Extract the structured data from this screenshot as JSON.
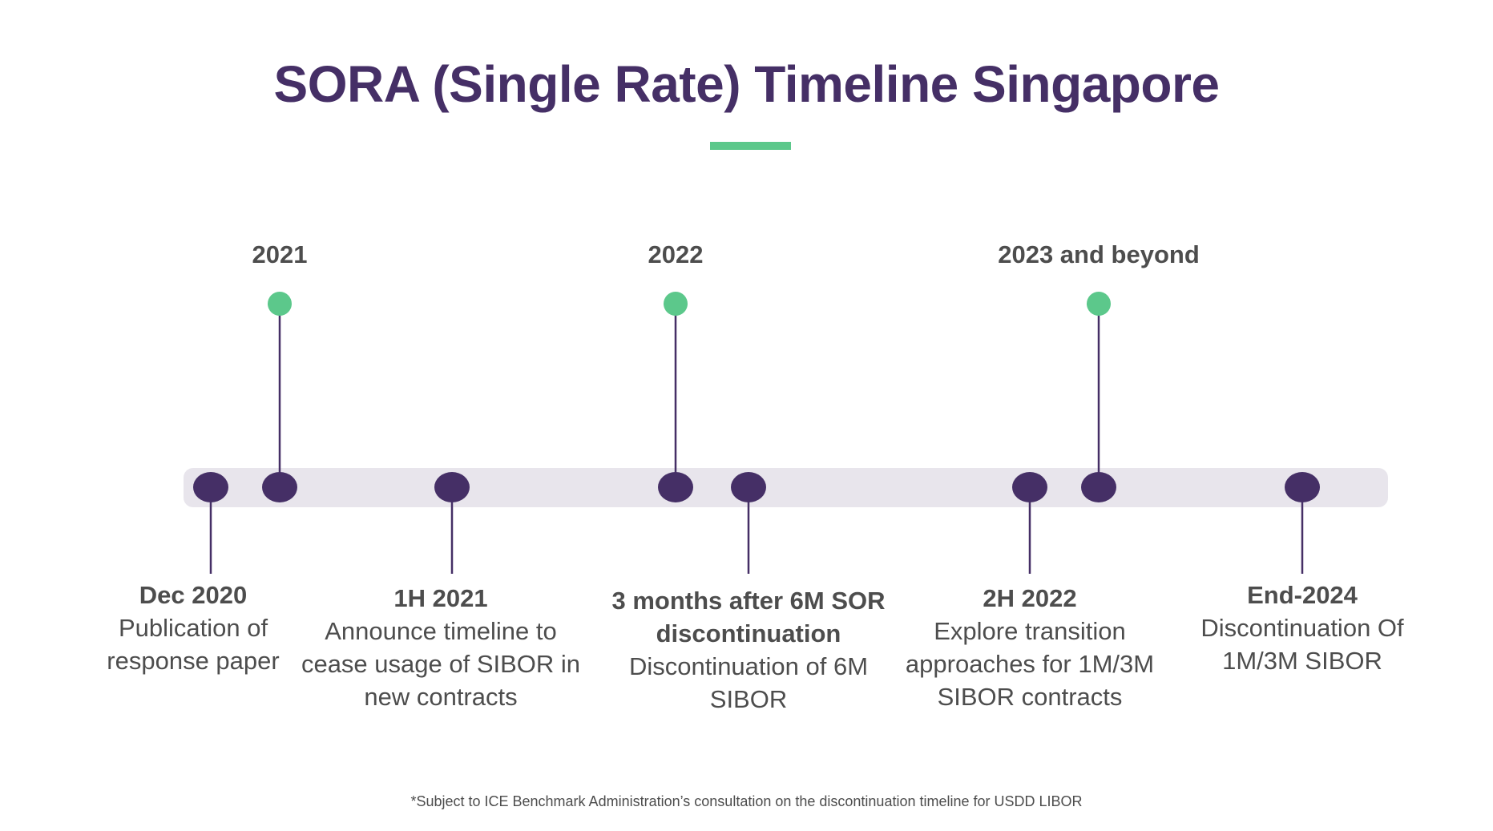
{
  "title": "SORA (Single Rate) Timeline Singapore",
  "colors": {
    "title": "#452f66",
    "accent_green": "#5cc88b",
    "node_purple": "#452f66",
    "track": "#e8e5ec",
    "text": "#4d4d4d"
  },
  "years": [
    {
      "label": "2021"
    },
    {
      "label": "2022"
    },
    {
      "label": "2023 and beyond"
    }
  ],
  "events": [
    {
      "title": "Dec 2020",
      "description": "Publication of response paper"
    },
    {
      "title": "1H 2021",
      "description": "Announce timeline to cease usage of SIBOR in new contracts"
    },
    {
      "title": "3 months after 6M SOR discontinuation",
      "description": "Discontinuation of 6M SIBOR"
    },
    {
      "title": "2H 2022",
      "description": "Explore transition approaches for 1M/3M SIBOR contracts"
    },
    {
      "title": "End-2024",
      "description": "Discontinuation Of 1M/3M SIBOR"
    }
  ],
  "footnote": "*Subject to ICE Benchmark Administration’s consultation on the discontinuation timeline for USDD LIBOR"
}
